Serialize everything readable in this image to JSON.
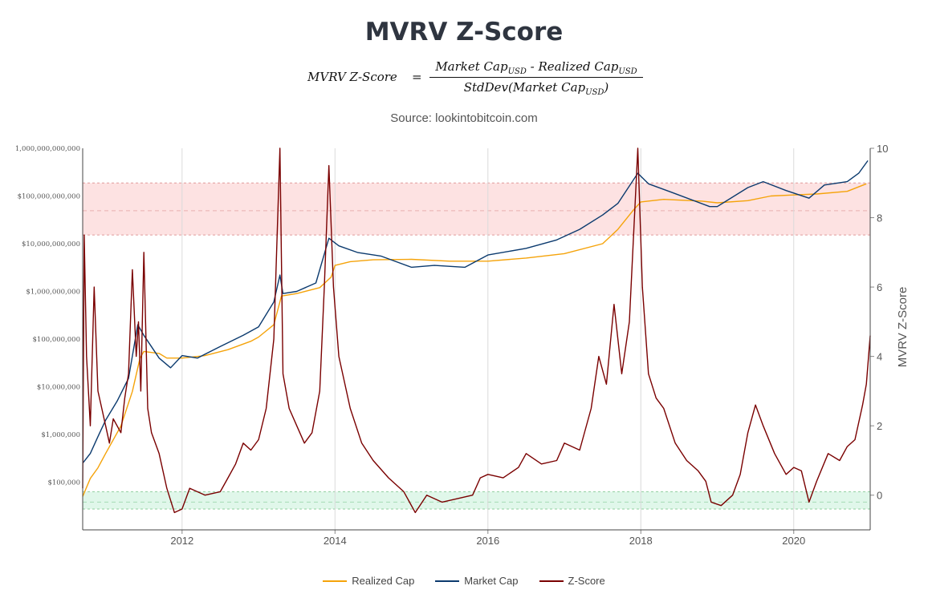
{
  "header": {
    "title": "MVRV Z-Score",
    "formula": {
      "lhs": "MVRV Z-Score",
      "eq": "=",
      "num_a": "Market Cap",
      "num_a_sub": "USD",
      "num_op": " - ",
      "num_b": "Realized Cap",
      "num_b_sub": "USD",
      "den_a": "StdDev(Market Cap",
      "den_sub": "USD",
      "den_b": ")"
    },
    "source": "Source: lookintobitcoin.com"
  },
  "colors": {
    "realized": "#f5a30a",
    "market": "#0b3a6e",
    "zscore": "#7a0000",
    "red_band": "#fde2e2",
    "green_band": "#e0f7ea"
  },
  "chart_data": {
    "type": "line",
    "grid": true,
    "legend_placement": "bottom-center",
    "x": {
      "range": [
        2010.7,
        2021.0
      ],
      "ticks": [
        "2012",
        "2014",
        "2016",
        "2018",
        "2020"
      ],
      "tick_values": [
        2012,
        2014,
        2016,
        2018,
        2020
      ]
    },
    "y_left": {
      "scale": "log",
      "range": [
        10000,
        1000000000000
      ],
      "ticks": [
        "1,000,000,000,000",
        "$100,000,000,000",
        "$10,000,000,000",
        "$1,000,000,000",
        "$100,000,000",
        "$10,000,000",
        "$1,000,000",
        "$100,000"
      ],
      "tick_values": [
        1000000000000,
        100000000000,
        10000000000,
        1000000000,
        100000000,
        10000000,
        1000000,
        100000
      ]
    },
    "y_right": {
      "label": "MVRV Z-Score",
      "range": [
        -1,
        10
      ],
      "ticks": [
        "10",
        "8",
        "6",
        "4",
        "2",
        "0"
      ],
      "tick_values": [
        10,
        8,
        6,
        4,
        2,
        0
      ]
    },
    "bands": [
      {
        "axis": "right",
        "from": 7.5,
        "to": 9.0,
        "color": "red",
        "mid": 8.2
      },
      {
        "axis": "right",
        "from": -0.4,
        "to": 0.1,
        "color": "green",
        "mid": -0.2
      }
    ],
    "series": [
      {
        "name": "Realized Cap",
        "axis": "left",
        "points": [
          [
            2010.7,
            50000
          ],
          [
            2010.8,
            120000
          ],
          [
            2010.9,
            200000
          ],
          [
            2011.0,
            400000
          ],
          [
            2011.2,
            1500000
          ],
          [
            2011.35,
            8000000
          ],
          [
            2011.45,
            40000000
          ],
          [
            2011.5,
            55000000
          ],
          [
            2011.7,
            50000000
          ],
          [
            2011.8,
            40000000
          ],
          [
            2012.0,
            40000000
          ],
          [
            2012.3,
            45000000
          ],
          [
            2012.6,
            60000000
          ],
          [
            2012.9,
            90000000
          ],
          [
            2013.0,
            110000000
          ],
          [
            2013.2,
            200000000
          ],
          [
            2013.3,
            800000000
          ],
          [
            2013.5,
            900000000
          ],
          [
            2013.8,
            1200000000
          ],
          [
            2013.95,
            2000000000
          ],
          [
            2014.0,
            3500000000
          ],
          [
            2014.2,
            4200000000
          ],
          [
            2014.5,
            4600000000
          ],
          [
            2015.0,
            4700000000
          ],
          [
            2015.5,
            4300000000
          ],
          [
            2016.0,
            4300000000
          ],
          [
            2016.5,
            5000000000
          ],
          [
            2017.0,
            6200000000
          ],
          [
            2017.5,
            10000000000
          ],
          [
            2017.7,
            20000000000
          ],
          [
            2017.9,
            50000000000
          ],
          [
            2018.0,
            75000000000
          ],
          [
            2018.3,
            85000000000
          ],
          [
            2018.8,
            78000000000
          ],
          [
            2019.0,
            72000000000
          ],
          [
            2019.4,
            80000000000
          ],
          [
            2019.7,
            100000000000
          ],
          [
            2020.0,
            105000000000
          ],
          [
            2020.3,
            110000000000
          ],
          [
            2020.7,
            125000000000
          ],
          [
            2020.95,
            180000000000
          ]
        ]
      },
      {
        "name": "Market Cap",
        "axis": "left",
        "points": [
          [
            2010.7,
            250000
          ],
          [
            2010.8,
            400000
          ],
          [
            2010.9,
            900000
          ],
          [
            2011.0,
            2000000
          ],
          [
            2011.15,
            5000000
          ],
          [
            2011.3,
            15000000
          ],
          [
            2011.42,
            200000000
          ],
          [
            2011.5,
            120000000
          ],
          [
            2011.7,
            40000000
          ],
          [
            2011.85,
            25000000
          ],
          [
            2012.0,
            45000000
          ],
          [
            2012.2,
            40000000
          ],
          [
            2012.5,
            70000000
          ],
          [
            2012.8,
            120000000
          ],
          [
            2013.0,
            180000000
          ],
          [
            2013.2,
            600000000
          ],
          [
            2013.28,
            2200000000
          ],
          [
            2013.32,
            900000000
          ],
          [
            2013.5,
            1000000000
          ],
          [
            2013.75,
            1500000000
          ],
          [
            2013.92,
            13000000000
          ],
          [
            2014.05,
            9000000000
          ],
          [
            2014.3,
            6500000000
          ],
          [
            2014.6,
            5500000000
          ],
          [
            2015.0,
            3200000000
          ],
          [
            2015.3,
            3500000000
          ],
          [
            2015.7,
            3200000000
          ],
          [
            2016.0,
            5800000000
          ],
          [
            2016.5,
            8000000000
          ],
          [
            2016.9,
            12000000000
          ],
          [
            2017.2,
            20000000000
          ],
          [
            2017.5,
            40000000000
          ],
          [
            2017.7,
            70000000000
          ],
          [
            2017.96,
            300000000000
          ],
          [
            2018.1,
            180000000000
          ],
          [
            2018.4,
            120000000000
          ],
          [
            2018.9,
            60000000000
          ],
          [
            2019.0,
            60000000000
          ],
          [
            2019.4,
            150000000000
          ],
          [
            2019.6,
            200000000000
          ],
          [
            2019.9,
            130000000000
          ],
          [
            2020.2,
            90000000000
          ],
          [
            2020.4,
            170000000000
          ],
          [
            2020.7,
            200000000000
          ],
          [
            2020.85,
            300000000000
          ],
          [
            2020.97,
            550000000000
          ]
        ]
      },
      {
        "name": "Z-Score",
        "axis": "right",
        "points": [
          [
            2010.7,
            0.2
          ],
          [
            2010.72,
            7.5
          ],
          [
            2010.75,
            4.0
          ],
          [
            2010.8,
            2.0
          ],
          [
            2010.85,
            6.0
          ],
          [
            2010.9,
            3.0
          ],
          [
            2010.95,
            2.5
          ],
          [
            2011.0,
            2.0
          ],
          [
            2011.05,
            1.5
          ],
          [
            2011.1,
            2.2
          ],
          [
            2011.2,
            1.8
          ],
          [
            2011.25,
            2.8
          ],
          [
            2011.3,
            3.5
          ],
          [
            2011.35,
            6.5
          ],
          [
            2011.4,
            4.0
          ],
          [
            2011.43,
            5.0
          ],
          [
            2011.46,
            3.0
          ],
          [
            2011.5,
            7.0
          ],
          [
            2011.55,
            2.5
          ],
          [
            2011.6,
            1.8
          ],
          [
            2011.7,
            1.2
          ],
          [
            2011.8,
            0.2
          ],
          [
            2011.9,
            -0.5
          ],
          [
            2012.0,
            -0.4
          ],
          [
            2012.1,
            0.2
          ],
          [
            2012.3,
            0.0
          ],
          [
            2012.5,
            0.1
          ],
          [
            2012.6,
            0.5
          ],
          [
            2012.7,
            0.9
          ],
          [
            2012.8,
            1.5
          ],
          [
            2012.9,
            1.3
          ],
          [
            2013.0,
            1.6
          ],
          [
            2013.1,
            2.5
          ],
          [
            2013.2,
            4.5
          ],
          [
            2013.28,
            10.0
          ],
          [
            2013.32,
            3.5
          ],
          [
            2013.4,
            2.5
          ],
          [
            2013.5,
            2.0
          ],
          [
            2013.6,
            1.5
          ],
          [
            2013.7,
            1.8
          ],
          [
            2013.8,
            3.0
          ],
          [
            2013.86,
            6.0
          ],
          [
            2013.92,
            9.5
          ],
          [
            2013.98,
            6.0
          ],
          [
            2014.05,
            4.0
          ],
          [
            2014.2,
            2.5
          ],
          [
            2014.35,
            1.5
          ],
          [
            2014.5,
            1.0
          ],
          [
            2014.7,
            0.5
          ],
          [
            2014.9,
            0.1
          ],
          [
            2015.05,
            -0.5
          ],
          [
            2015.2,
            0.0
          ],
          [
            2015.4,
            -0.2
          ],
          [
            2015.6,
            -0.1
          ],
          [
            2015.8,
            0.0
          ],
          [
            2015.9,
            0.5
          ],
          [
            2016.0,
            0.6
          ],
          [
            2016.2,
            0.5
          ],
          [
            2016.4,
            0.8
          ],
          [
            2016.5,
            1.2
          ],
          [
            2016.7,
            0.9
          ],
          [
            2016.9,
            1.0
          ],
          [
            2017.0,
            1.5
          ],
          [
            2017.2,
            1.3
          ],
          [
            2017.35,
            2.5
          ],
          [
            2017.45,
            4.0
          ],
          [
            2017.55,
            3.2
          ],
          [
            2017.65,
            5.5
          ],
          [
            2017.75,
            3.5
          ],
          [
            2017.85,
            5.0
          ],
          [
            2017.96,
            10.0
          ],
          [
            2018.02,
            6.0
          ],
          [
            2018.1,
            3.5
          ],
          [
            2018.2,
            2.8
          ],
          [
            2018.3,
            2.5
          ],
          [
            2018.45,
            1.5
          ],
          [
            2018.6,
            1.0
          ],
          [
            2018.75,
            0.7
          ],
          [
            2018.85,
            0.4
          ],
          [
            2018.92,
            -0.2
          ],
          [
            2019.05,
            -0.3
          ],
          [
            2019.2,
            0.0
          ],
          [
            2019.3,
            0.6
          ],
          [
            2019.4,
            1.8
          ],
          [
            2019.5,
            2.6
          ],
          [
            2019.6,
            2.0
          ],
          [
            2019.75,
            1.2
          ],
          [
            2019.9,
            0.6
          ],
          [
            2020.0,
            0.8
          ],
          [
            2020.1,
            0.7
          ],
          [
            2020.2,
            -0.2
          ],
          [
            2020.3,
            0.4
          ],
          [
            2020.45,
            1.2
          ],
          [
            2020.6,
            1.0
          ],
          [
            2020.7,
            1.4
          ],
          [
            2020.8,
            1.6
          ],
          [
            2020.9,
            2.6
          ],
          [
            2020.95,
            3.2
          ],
          [
            2021.0,
            4.6
          ]
        ]
      }
    ]
  },
  "legend": [
    {
      "label": "Realized Cap",
      "color": "#f5a30a"
    },
    {
      "label": "Market Cap",
      "color": "#0b3a6e"
    },
    {
      "label": "Z-Score",
      "color": "#7a0000"
    }
  ]
}
